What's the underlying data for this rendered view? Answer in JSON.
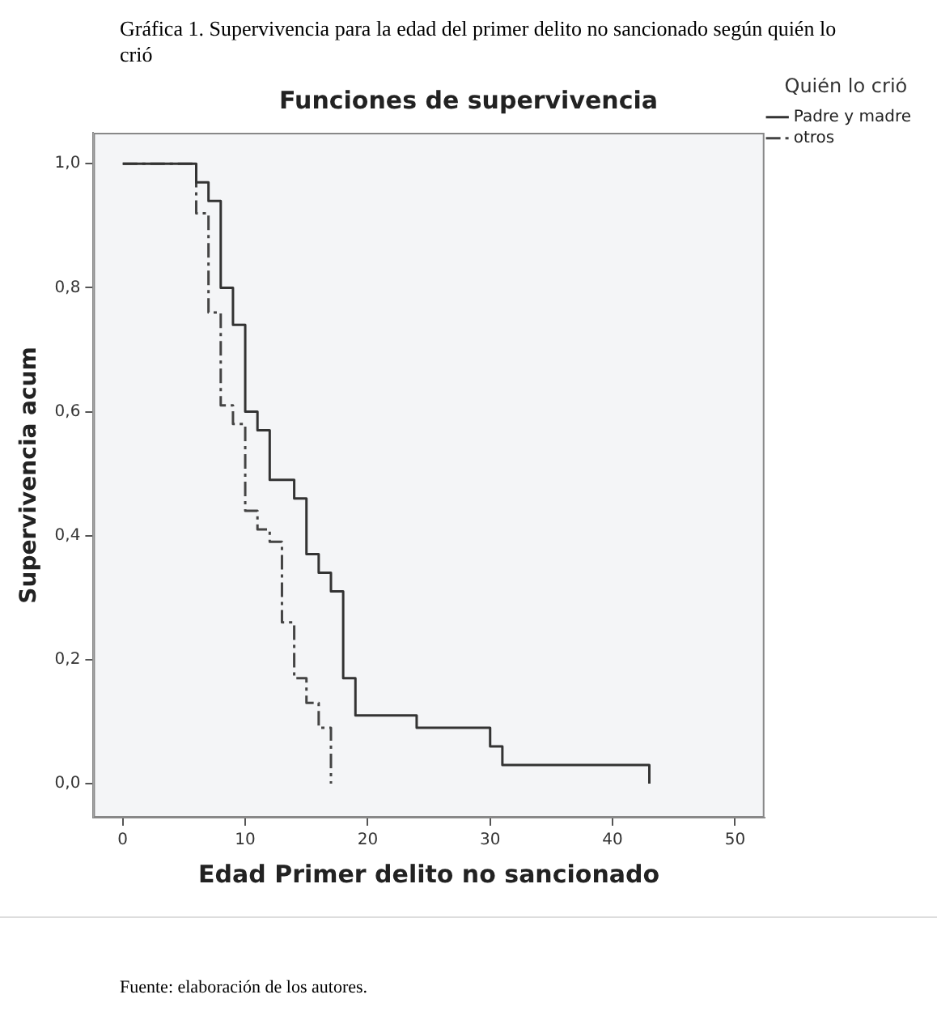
{
  "chart_data": {
    "type": "step",
    "title": "Funciones de supervivencia",
    "xlabel": "Edad Primer delito no sancionado",
    "ylabel": "Supervivencia acum",
    "legend_title": "Quién lo crió",
    "annotations": [
      "Gráfica 1. Supervivencia para la edad del primer delito no sancionado según quién lo crió",
      "Fuente: elaboración de los autores."
    ],
    "series": [
      {
        "name": "Padre y madre",
        "color": "#333333",
        "line_style": "solid",
        "x": [
          0,
          6,
          7,
          8,
          9,
          10,
          11,
          12,
          14,
          15,
          16,
          17,
          18,
          19,
          24,
          30,
          31,
          43
        ],
        "values": [
          1,
          0.97,
          0.94,
          0.8,
          0.74,
          0.6,
          0.57,
          0.49,
          0.46,
          0.37,
          0.34,
          0.31,
          0.17,
          0.11,
          0.09,
          0.06,
          0.03,
          0
        ]
      },
      {
        "name": "otros",
        "color": "#444444",
        "line_style": "dashed",
        "x": [
          0,
          6,
          7,
          8,
          9,
          10,
          11,
          12,
          13,
          14,
          15,
          16,
          17
        ],
        "values": [
          1,
          0.92,
          0.76,
          0.61,
          0.58,
          0.44,
          0.41,
          0.39,
          0.26,
          0.17,
          0.13,
          0.09,
          0
        ]
      }
    ],
    "xlim": [
      -2.4,
      52.4
    ],
    "xticks": [
      0,
      10,
      20,
      30,
      40,
      50
    ],
    "ylim": [
      -0.055,
      1.05
    ],
    "yticks": [
      {
        "value": 0,
        "label": "0,0"
      },
      {
        "value": 0.2,
        "label": "0,2"
      },
      {
        "value": 0.4,
        "label": "0,4"
      },
      {
        "value": 0.6,
        "label": "0,6"
      },
      {
        "value": 0.8,
        "label": "0,8"
      },
      {
        "value": 1,
        "label": "1,0"
      }
    ],
    "grid": false,
    "legend": "top right",
    "marker": "none"
  }
}
